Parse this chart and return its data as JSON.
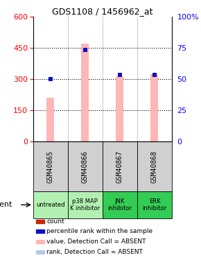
{
  "title": "GDS1108 / 1456962_at",
  "samples": [
    "GSM40865",
    "GSM40866",
    "GSM40867",
    "GSM40868"
  ],
  "agents": [
    "untreated",
    "p38 MAP\nK inhibitor",
    "JNK\ninhibitor",
    "ERK\ninhibitor"
  ],
  "agent_colors": [
    "#b2f0b2",
    "#b2f0b2",
    "#33cc55",
    "#33cc55"
  ],
  "gsm_bg": "#d0d0d0",
  "pink_bar_values": [
    210,
    470,
    315,
    325
  ],
  "blue_bar_values": [
    300,
    440,
    320,
    320
  ],
  "ylim_left": [
    0,
    600
  ],
  "ylim_right": [
    0,
    100
  ],
  "yticks_left": [
    0,
    150,
    300,
    450,
    600
  ],
  "yticks_right": [
    0,
    25,
    50,
    75,
    100
  ],
  "ytick_labels_left": [
    "0",
    "150",
    "300",
    "450",
    "600"
  ],
  "ytick_labels_right": [
    "0",
    "25",
    "50",
    "75",
    "100%"
  ],
  "bar_color_absent": "#ffb6b6",
  "rank_bar_color_absent": "#b8c8e8",
  "dot_color_blue": "#1010cc",
  "legend_items": [
    {
      "color": "#cc2200",
      "label": "count"
    },
    {
      "color": "#1010cc",
      "label": "percentile rank within the sample"
    },
    {
      "color": "#ffb6b6",
      "label": "value, Detection Call = ABSENT"
    },
    {
      "color": "#b8c8e8",
      "label": "rank, Detection Call = ABSENT"
    }
  ]
}
